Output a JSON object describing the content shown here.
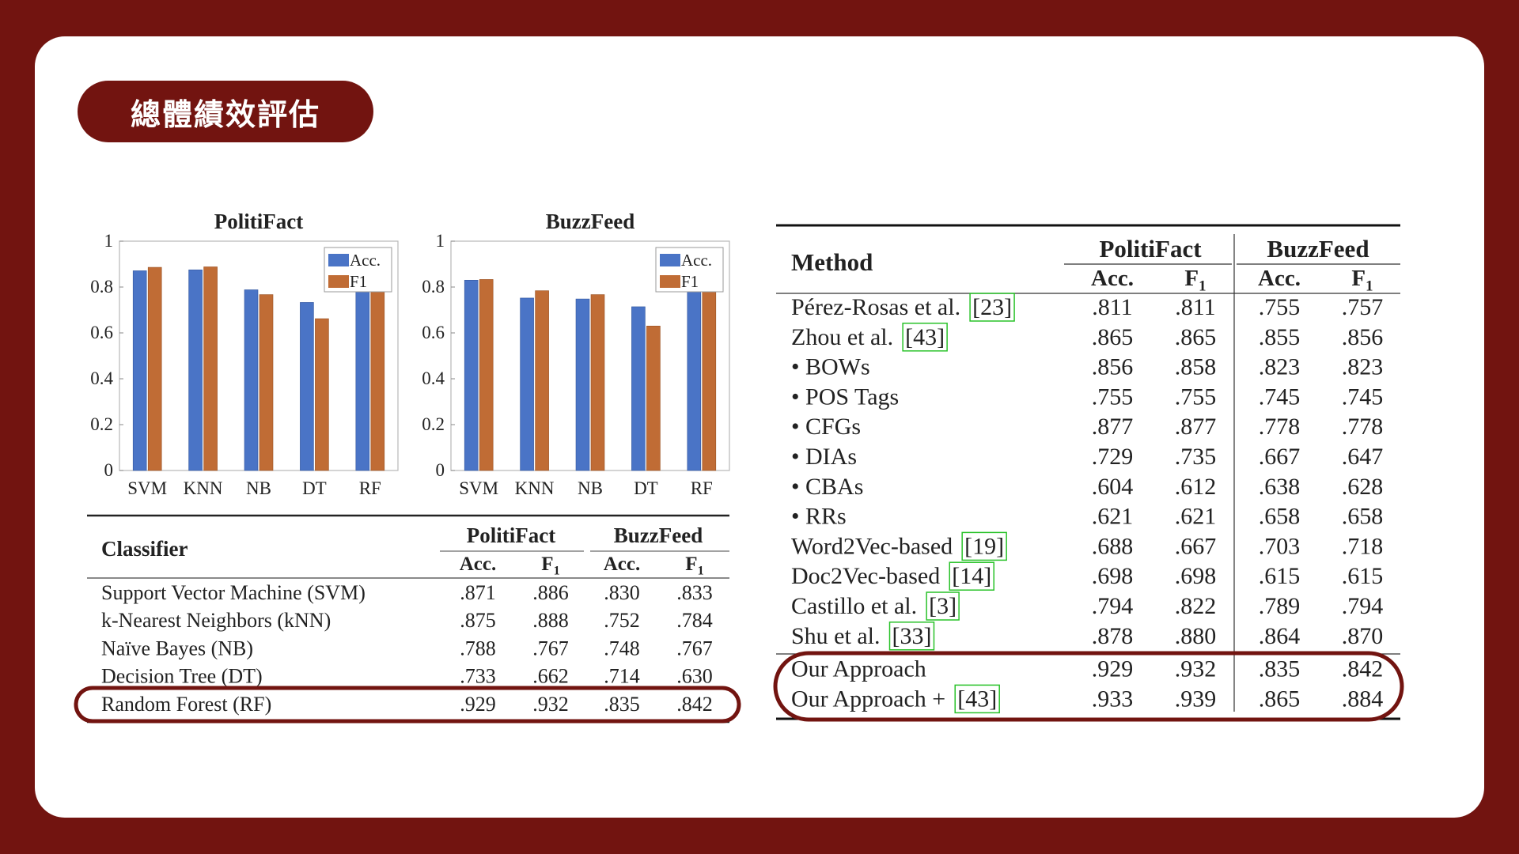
{
  "slide_title": "總體績效評估",
  "colors": {
    "acc": "#4a74c6",
    "f1": "#c06c35",
    "frame": "#721410",
    "highlight": "#721410"
  },
  "chart_data": [
    {
      "type": "bar",
      "title": "PolitiFact",
      "categories": [
        "SVM",
        "KNN",
        "NB",
        "DT",
        "RF"
      ],
      "series": [
        {
          "name": "Acc.",
          "values": [
            0.871,
            0.875,
            0.788,
            0.733,
            0.929
          ]
        },
        {
          "name": "F1",
          "values": [
            0.886,
            0.888,
            0.767,
            0.662,
            0.932
          ]
        }
      ],
      "ylim": [
        0,
        1
      ],
      "yticks": [
        "0",
        "0.2",
        "0.4",
        "0.6",
        "0.8",
        "1"
      ],
      "legend": "top-right"
    },
    {
      "type": "bar",
      "title": "BuzzFeed",
      "categories": [
        "SVM",
        "KNN",
        "NB",
        "DT",
        "RF"
      ],
      "series": [
        {
          "name": "Acc.",
          "values": [
            0.83,
            0.752,
            0.748,
            0.714,
            0.835
          ]
        },
        {
          "name": "F1",
          "values": [
            0.833,
            0.784,
            0.767,
            0.63,
            0.842
          ]
        }
      ],
      "ylim": [
        0,
        1
      ],
      "yticks": [
        "0",
        "0.2",
        "0.4",
        "0.6",
        "0.8",
        "1"
      ],
      "legend": "top-right"
    }
  ],
  "classifier_table": {
    "header": {
      "first": "Classifier",
      "groups": [
        "PolitiFact",
        "BuzzFeed"
      ],
      "metrics": [
        "Acc.",
        "F",
        "Acc.",
        "F"
      ],
      "sub": "1"
    },
    "rows": [
      {
        "name": "Support Vector Machine (SVM)",
        "values": [
          ".871",
          ".886",
          ".830",
          ".833"
        ]
      },
      {
        "name": "k-Nearest Neighbors (kNN)",
        "values": [
          ".875",
          ".888",
          ".752",
          ".784"
        ]
      },
      {
        "name": "Naïve Bayes (NB)",
        "values": [
          ".788",
          ".767",
          ".748",
          ".767"
        ]
      },
      {
        "name": "Decision Tree (DT)",
        "values": [
          ".733",
          ".662",
          ".714",
          ".630"
        ]
      },
      {
        "name": "Random Forest (RF)",
        "values": [
          ".929",
          ".932",
          ".835",
          ".842"
        ]
      }
    ]
  },
  "method_table": {
    "header": {
      "first": "Method",
      "groups": [
        "PolitiFact",
        "BuzzFeed"
      ],
      "metrics": [
        "Acc.",
        "F",
        "Acc.",
        "F"
      ],
      "sub": "1"
    },
    "rows": [
      {
        "name": "Pérez-Rosas et al.",
        "ref": "23",
        "values": [
          ".811",
          ".811",
          ".755",
          ".757"
        ]
      },
      {
        "name": "Zhou et al.",
        "ref": "43",
        "values": [
          ".865",
          ".865",
          ".855",
          ".856"
        ]
      },
      {
        "name": "• BOWs",
        "values": [
          ".856",
          ".858",
          ".823",
          ".823"
        ]
      },
      {
        "name": "• POS Tags",
        "values": [
          ".755",
          ".755",
          ".745",
          ".745"
        ]
      },
      {
        "name": "• CFGs",
        "values": [
          ".877",
          ".877",
          ".778",
          ".778"
        ]
      },
      {
        "name": "• DIAs",
        "values": [
          ".729",
          ".735",
          ".667",
          ".647"
        ]
      },
      {
        "name": "• CBAs",
        "values": [
          ".604",
          ".612",
          ".638",
          ".628"
        ]
      },
      {
        "name": "• RRs",
        "values": [
          ".621",
          ".621",
          ".658",
          ".658"
        ]
      },
      {
        "name": "Word2Vec-based",
        "ref": "19",
        "values": [
          ".688",
          ".667",
          ".703",
          ".718"
        ]
      },
      {
        "name": "Doc2Vec-based",
        "ref": "14",
        "values": [
          ".698",
          ".698",
          ".615",
          ".615"
        ]
      },
      {
        "name": "Castillo et al.",
        "ref": "3",
        "values": [
          ".794",
          ".822",
          ".789",
          ".794"
        ]
      },
      {
        "name": "Shu et al.",
        "ref": "33",
        "values": [
          ".878",
          ".880",
          ".864",
          ".870"
        ]
      },
      {
        "name": "Our Approach",
        "values": [
          ".929",
          ".932",
          ".835",
          ".842"
        ]
      },
      {
        "name": "Our Approach +",
        "ref": "43",
        "values": [
          ".933",
          ".939",
          ".865",
          ".884"
        ]
      }
    ]
  }
}
